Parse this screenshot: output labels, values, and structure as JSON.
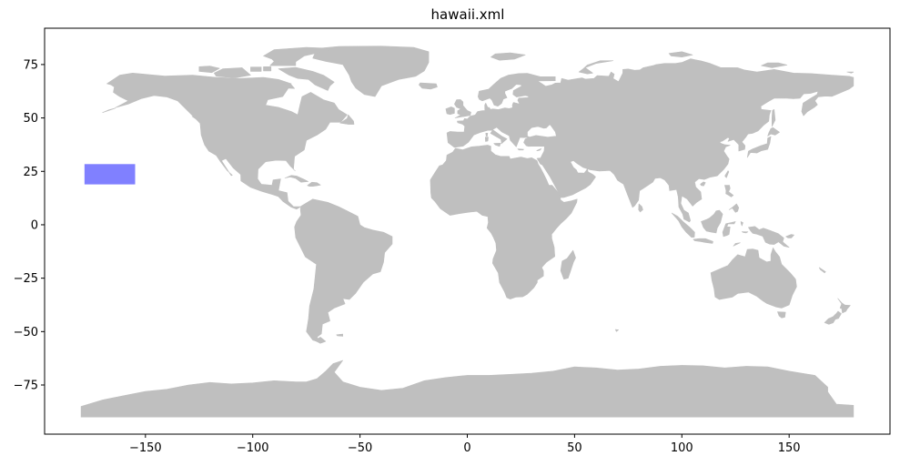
{
  "chart_data": {
    "type": "map",
    "title": "hawaii.xml",
    "xlabel": "",
    "ylabel": "",
    "xlim": [
      -197,
      197
    ],
    "ylim": [
      -98,
      92
    ],
    "xticks": [
      -150,
      -100,
      -50,
      0,
      50,
      100,
      150
    ],
    "yticks": [
      -75,
      -50,
      -25,
      0,
      25,
      50,
      75
    ],
    "grid": false,
    "land_color": "#bfbfbf",
    "highlight": {
      "name": "",
      "lon_min": -178.4,
      "lon_max": -154.8,
      "lat_min": 18.9,
      "lat_max": 28.4,
      "color": "#8080ff"
    }
  }
}
